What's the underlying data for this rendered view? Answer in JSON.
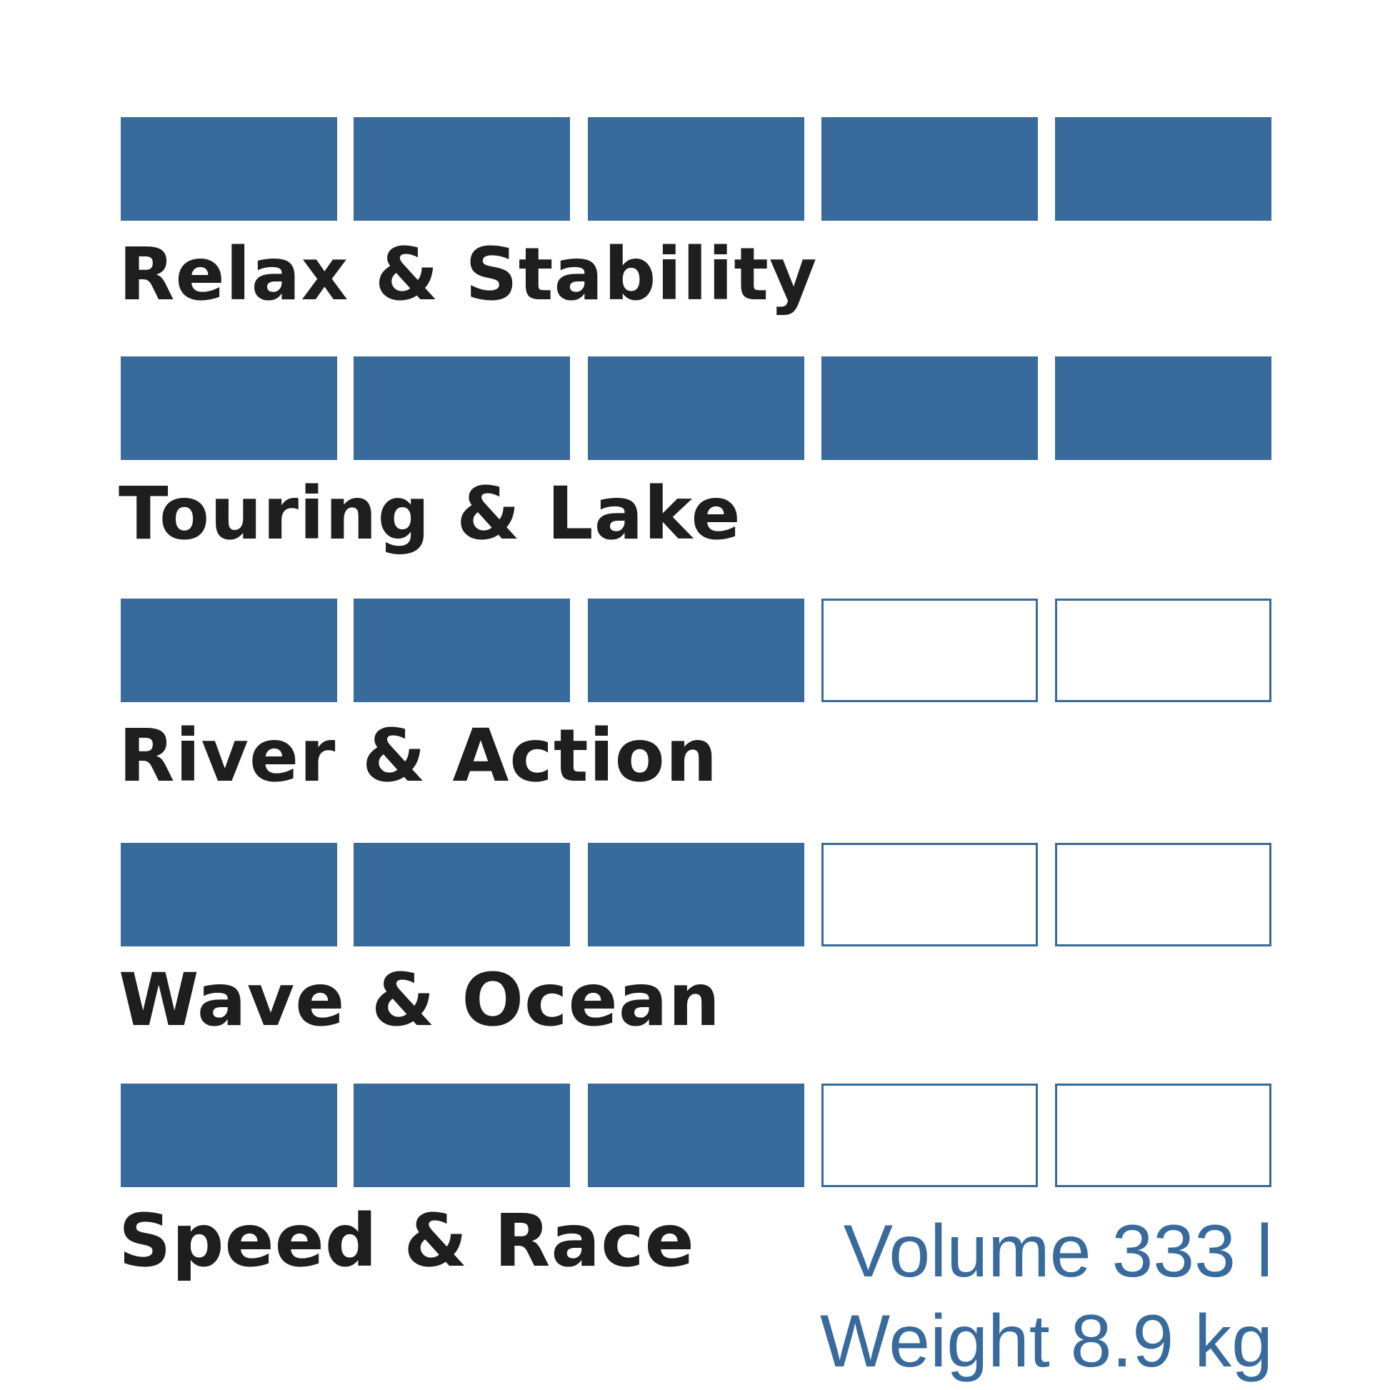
{
  "chart_data": {
    "type": "rating",
    "max": 5,
    "color_filled": "#396a9c",
    "categories": [
      "Relax & Stability",
      "Touring & Lake",
      "River & Action",
      "Wave & Ocean",
      "Speed & Race"
    ],
    "values": [
      5,
      5,
      3,
      3,
      3
    ]
  },
  "specs": {
    "volume": "Volume 333 l",
    "weight": "Weight 8.9 kg"
  }
}
